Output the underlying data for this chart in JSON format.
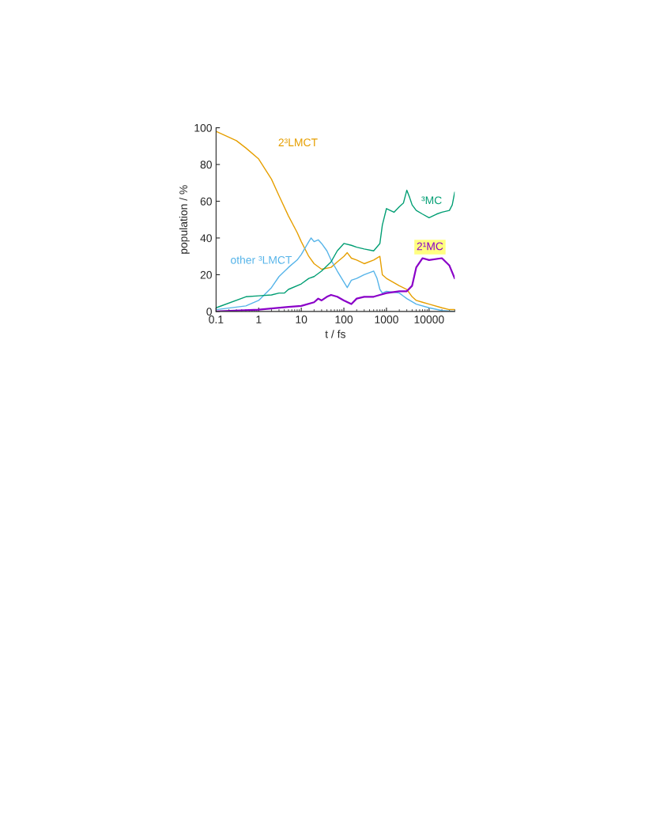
{
  "chart_data": {
    "type": "line",
    "xlabel": "t / fs",
    "ylabel": "population / %",
    "log": "x",
    "xlim": [
      0.1,
      40000
    ],
    "xticks": [
      0.1,
      1,
      10,
      100,
      1000,
      10000
    ],
    "ylim": [
      0,
      100
    ],
    "yticks": [
      0,
      20,
      40,
      60,
      80,
      100
    ],
    "grid": false,
    "legend": false,
    "series": [
      {
        "name": "2³LMCT",
        "color": "#e69f00",
        "x": [
          0.1,
          0.3,
          0.5,
          1,
          2,
          3,
          5,
          8,
          10,
          15,
          20,
          30,
          50,
          70,
          100,
          120,
          150,
          200,
          300,
          500,
          700,
          800,
          1000,
          2000,
          3000,
          4000,
          5000,
          7000,
          10000,
          20000,
          30000,
          40000
        ],
        "values": [
          98,
          93,
          89,
          83,
          72,
          63,
          52,
          43,
          38,
          30,
          26,
          23,
          24,
          27,
          30,
          32,
          29,
          28,
          26,
          28,
          30,
          20,
          18,
          14,
          12,
          8,
          6,
          5,
          4,
          2,
          1,
          1
        ]
      },
      {
        "name": "other ³LMCT",
        "color": "#56b4e9",
        "x": [
          0.1,
          0.5,
          1,
          2,
          3,
          5,
          8,
          10,
          15,
          17,
          20,
          25,
          30,
          40,
          50,
          70,
          100,
          120,
          150,
          200,
          300,
          500,
          600,
          700,
          800,
          1000,
          2000,
          3000,
          5000,
          10000,
          20000,
          40000
        ],
        "values": [
          1,
          3,
          6,
          13,
          19,
          24,
          28,
          31,
          38,
          40,
          38,
          39,
          37,
          33,
          28,
          22,
          16,
          13,
          17,
          18,
          20,
          22,
          18,
          12,
          10,
          11,
          10,
          7,
          4,
          2,
          0.5,
          0
        ]
      },
      {
        "name": "³MC",
        "color": "#009e73",
        "x": [
          0.1,
          0.5,
          1,
          2,
          3,
          4,
          5,
          10,
          15,
          20,
          30,
          50,
          70,
          100,
          150,
          200,
          300,
          500,
          700,
          800,
          1000,
          1500,
          2000,
          2500,
          3000,
          3500,
          4000,
          5000,
          7000,
          10000,
          15000,
          20000,
          30000,
          35000,
          40000
        ],
        "values": [
          2,
          8,
          8.5,
          9,
          10,
          10,
          12,
          15,
          18,
          19,
          22,
          27,
          33,
          37,
          36,
          35,
          34,
          33,
          37,
          47,
          56,
          54,
          57,
          59,
          66,
          62,
          58,
          55,
          53,
          51,
          53,
          54,
          55,
          58,
          65
        ]
      },
      {
        "name": "2¹MC",
        "color": "#8a00c8",
        "x": [
          0.1,
          1,
          5,
          10,
          20,
          25,
          30,
          40,
          50,
          70,
          100,
          150,
          200,
          300,
          500,
          700,
          1000,
          2000,
          3000,
          4000,
          5000,
          7000,
          10000,
          20000,
          30000,
          40000
        ],
        "values": [
          0,
          1,
          2.5,
          3,
          5,
          7,
          6,
          8,
          9,
          8,
          6,
          4,
          7,
          8,
          8,
          9,
          10,
          11,
          11,
          14,
          24,
          29,
          28,
          29,
          25,
          18
        ]
      }
    ]
  }
}
